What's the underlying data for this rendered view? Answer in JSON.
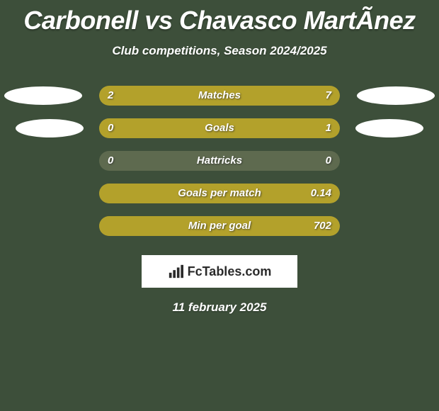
{
  "title": "Carbonell vs Chavasco MartÃ­nez",
  "subtitle": "Club competitions, Season 2024/2025",
  "date": "11 february 2025",
  "colors": {
    "background": "#3d4f3a",
    "bar_track": "#5e6a4f",
    "bar_fill": "#b3a12b",
    "ellipse": "#ffffff",
    "text": "#ffffff",
    "brand_bg": "#ffffff",
    "brand_text": "#2b2b2b"
  },
  "brand": {
    "icon_name": "bar-chart-icon",
    "text": "FcTables.com"
  },
  "stats": [
    {
      "label": "Matches",
      "left_value": "2",
      "right_value": "7",
      "left_fill_pct": 22,
      "right_fill_pct": 78,
      "show_ellipses": true
    },
    {
      "label": "Goals",
      "left_value": "0",
      "right_value": "1",
      "left_fill_pct": 0,
      "right_fill_pct": 100,
      "show_ellipses": true,
      "ellipse_narrow": true
    },
    {
      "label": "Hattricks",
      "left_value": "0",
      "right_value": "0",
      "left_fill_pct": 0,
      "right_fill_pct": 0,
      "show_ellipses": false
    },
    {
      "label": "Goals per match",
      "left_value": "",
      "right_value": "0.14",
      "left_fill_pct": 0,
      "right_fill_pct": 100,
      "show_ellipses": false
    },
    {
      "label": "Min per goal",
      "left_value": "",
      "right_value": "702",
      "left_fill_pct": 0,
      "right_fill_pct": 100,
      "show_ellipses": false
    }
  ]
}
